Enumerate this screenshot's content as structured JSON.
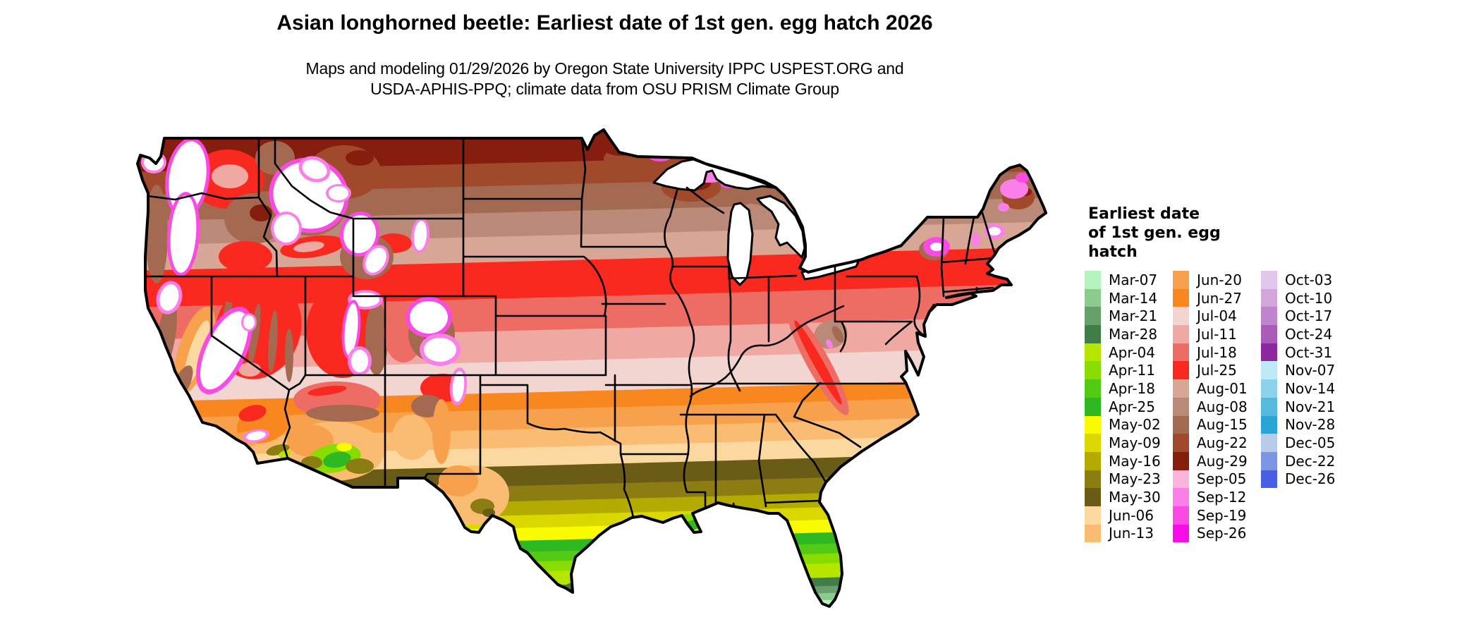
{
  "header": {
    "title": "Asian longhorned beetle: Earliest date of 1st gen. egg hatch 2026",
    "subtitle_line1": "Maps and modeling 01/29/2026 by Oregon State University IPPC USPEST.ORG and",
    "subtitle_line2": "USDA-APHIS-PPQ; climate data from OSU PRISM Climate Group"
  },
  "legend": {
    "title_lines": [
      "Earliest date",
      "of 1st gen. egg",
      "hatch"
    ],
    "columns": [
      [
        {
          "label": "Mar-07",
          "color": "#b7f3c0"
        },
        {
          "label": "Mar-14",
          "color": "#8cca8e"
        },
        {
          "label": "Mar-21",
          "color": "#68a06b"
        },
        {
          "label": "Mar-28",
          "color": "#417d46"
        },
        {
          "label": "Apr-04",
          "color": "#b6e600"
        },
        {
          "label": "Apr-11",
          "color": "#88dc00"
        },
        {
          "label": "Apr-18",
          "color": "#53ca14"
        },
        {
          "label": "Apr-25",
          "color": "#2eb922"
        },
        {
          "label": "May-02",
          "color": "#fbfb00"
        },
        {
          "label": "May-09",
          "color": "#dbd800"
        },
        {
          "label": "May-16",
          "color": "#b3ab00"
        },
        {
          "label": "May-23",
          "color": "#8b7d12"
        },
        {
          "label": "May-30",
          "color": "#6a5b17"
        },
        {
          "label": "Jun-06",
          "color": "#fbd8a0"
        },
        {
          "label": "Jun-13",
          "color": "#fabc73"
        }
      ],
      [
        {
          "label": "Jun-20",
          "color": "#f8a14d"
        },
        {
          "label": "Jun-27",
          "color": "#f8871f"
        },
        {
          "label": "Jul-04",
          "color": "#f2d5d1"
        },
        {
          "label": "Jul-11",
          "color": "#efa8a2"
        },
        {
          "label": "Jul-18",
          "color": "#ed6d65"
        },
        {
          "label": "Jul-25",
          "color": "#fa291f"
        },
        {
          "label": "Aug-01",
          "color": "#d7a695"
        },
        {
          "label": "Aug-08",
          "color": "#bb8977"
        },
        {
          "label": "Aug-15",
          "color": "#a46a51"
        },
        {
          "label": "Aug-22",
          "color": "#a04a2b"
        },
        {
          "label": "Aug-29",
          "color": "#861e0f"
        },
        {
          "label": "Sep-05",
          "color": "#fcb4dd"
        },
        {
          "label": "Sep-12",
          "color": "#fa7fe8"
        },
        {
          "label": "Sep-19",
          "color": "#f94be4"
        },
        {
          "label": "Sep-26",
          "color": "#fa0ce8"
        }
      ],
      [
        {
          "label": "Oct-03",
          "color": "#e1c7eb"
        },
        {
          "label": "Oct-10",
          "color": "#d1a7db"
        },
        {
          "label": "Oct-17",
          "color": "#bf84cb"
        },
        {
          "label": "Oct-24",
          "color": "#a85bb7"
        },
        {
          "label": "Oct-31",
          "color": "#8d27a0"
        },
        {
          "label": "Nov-07",
          "color": "#beeaf7"
        },
        {
          "label": "Nov-14",
          "color": "#8ed1eb"
        },
        {
          "label": "Nov-21",
          "color": "#57b9dd"
        },
        {
          "label": "Nov-28",
          "color": "#2da4d7"
        },
        {
          "label": "Dec-05",
          "color": "#b7cae7"
        },
        {
          "label": "Dec-22",
          "color": "#7d95e2"
        },
        {
          "label": "Dec-26",
          "color": "#495ee7"
        }
      ]
    ]
  },
  "map": {
    "no_data_color": "#ffffff",
    "border_color": "#000000"
  }
}
